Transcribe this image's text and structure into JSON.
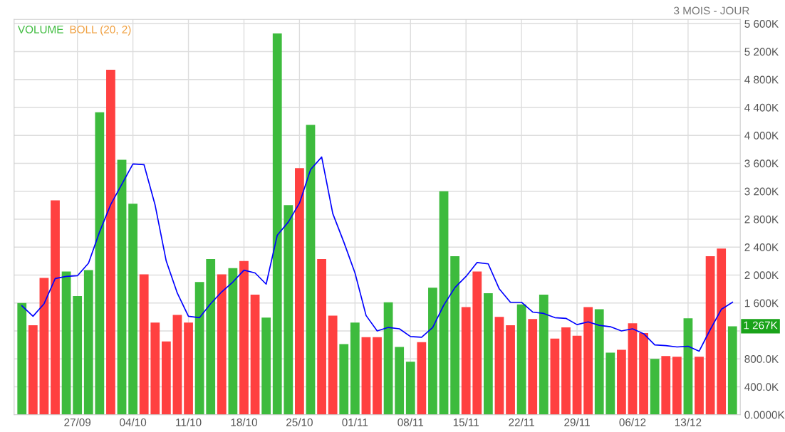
{
  "chart_data": {
    "type": "bar",
    "subtitle": "3 MOIS - JOUR",
    "categories": [
      null,
      null,
      null,
      null,
      null,
      "27/09",
      null,
      null,
      null,
      null,
      "04/10",
      null,
      null,
      null,
      null,
      "11/10",
      null,
      null,
      null,
      null,
      "18/10",
      null,
      null,
      null,
      null,
      "25/10",
      null,
      null,
      null,
      null,
      "01/11",
      null,
      null,
      null,
      null,
      "08/11",
      null,
      null,
      null,
      null,
      "15/11",
      null,
      null,
      null,
      null,
      "22/11",
      null,
      null,
      null,
      null,
      "29/11",
      null,
      null,
      null,
      null,
      "06/12",
      null,
      null,
      null,
      null,
      "13/12",
      null,
      null,
      null,
      null
    ],
    "series": [
      {
        "name": "VOLUME",
        "values": [
          1600,
          1280,
          1960,
          3070,
          2050,
          1700,
          2070,
          4330,
          4940,
          3650,
          3020,
          2010,
          1320,
          1050,
          1430,
          1320,
          1900,
          2230,
          2010,
          2100,
          2200,
          1720,
          1390,
          5460,
          3000,
          3530,
          4150,
          2230,
          1420,
          1010,
          1320,
          1110,
          1110,
          1610,
          970,
          760,
          1040,
          1820,
          3200,
          2270,
          1540,
          2050,
          1740,
          1400,
          1280,
          1580,
          1370,
          1720,
          1090,
          1250,
          1130,
          1540,
          1510,
          890,
          930,
          1310,
          1170,
          800,
          840,
          830,
          1380,
          830,
          2270,
          2380,
          1267
        ],
        "colors": [
          "#3dbb3d",
          "#ff4040",
          "#ff4040",
          "#ff4040",
          "#3dbb3d",
          "#3dbb3d",
          "#3dbb3d",
          "#3dbb3d",
          "#ff4040",
          "#3dbb3d",
          "#3dbb3d",
          "#ff4040",
          "#ff4040",
          "#ff4040",
          "#ff4040",
          "#ff4040",
          "#3dbb3d",
          "#3dbb3d",
          "#ff4040",
          "#3dbb3d",
          "#ff4040",
          "#ff4040",
          "#3dbb3d",
          "#3dbb3d",
          "#3dbb3d",
          "#ff4040",
          "#3dbb3d",
          "#ff4040",
          "#ff4040",
          "#3dbb3d",
          "#3dbb3d",
          "#ff4040",
          "#ff4040",
          "#3dbb3d",
          "#3dbb3d",
          "#3dbb3d",
          "#ff4040",
          "#3dbb3d",
          "#3dbb3d",
          "#3dbb3d",
          "#ff4040",
          "#ff4040",
          "#3dbb3d",
          "#ff4040",
          "#ff4040",
          "#3dbb3d",
          "#ff4040",
          "#3dbb3d",
          "#ff4040",
          "#ff4040",
          "#ff4040",
          "#ff4040",
          "#3dbb3d",
          "#3dbb3d",
          "#ff4040",
          "#ff4040",
          "#ff4040",
          "#3dbb3d",
          "#ff4040",
          "#ff4040",
          "#3dbb3d",
          "#ff4040",
          "#ff4040",
          "#ff4040",
          "#3dbb3d"
        ]
      },
      {
        "type": "line",
        "color": "#0000ff",
        "values": [
          1560,
          1410,
          1590,
          1950,
          1980,
          1990,
          2170,
          2620,
          3010,
          3300,
          3590,
          3580,
          3000,
          2200,
          1740,
          1410,
          1390,
          1590,
          1760,
          1900,
          2070,
          2030,
          1870,
          2570,
          2760,
          3030,
          3510,
          3690,
          2880,
          2470,
          2030,
          1420,
          1200,
          1250,
          1230,
          1120,
          1110,
          1250,
          1570,
          1820,
          1980,
          2180,
          2160,
          1800,
          1610,
          1610,
          1470,
          1450,
          1390,
          1380,
          1290,
          1330,
          1280,
          1260,
          1200,
          1230,
          1160,
          1000,
          990,
          970,
          980,
          910,
          1220,
          1510,
          1610
        ]
      }
    ],
    "ylim": [
      0,
      5660
    ],
    "yticks": [
      {
        "value": 0,
        "label": "0.0000K"
      },
      {
        "value": 400,
        "label": "400.0K"
      },
      {
        "value": 800,
        "label": "800.0K"
      },
      {
        "value": 1200,
        "label": null
      },
      {
        "value": 1600,
        "label": "1 600K"
      },
      {
        "value": 2000,
        "label": "2 000K"
      },
      {
        "value": 2400,
        "label": "2 400K"
      },
      {
        "value": 2800,
        "label": "2 800K"
      },
      {
        "value": 3200,
        "label": "3 200K"
      },
      {
        "value": 3600,
        "label": "3 600K"
      },
      {
        "value": 4000,
        "label": "4 000K"
      },
      {
        "value": 4400,
        "label": "4 400K"
      },
      {
        "value": 4800,
        "label": "4 800K"
      },
      {
        "value": 5200,
        "label": "5 200K"
      },
      {
        "value": 5600,
        "label": "5 600K"
      }
    ],
    "grid": true,
    "annotations": [
      "BOLL (20, 2)",
      "1 267K"
    ]
  }
}
